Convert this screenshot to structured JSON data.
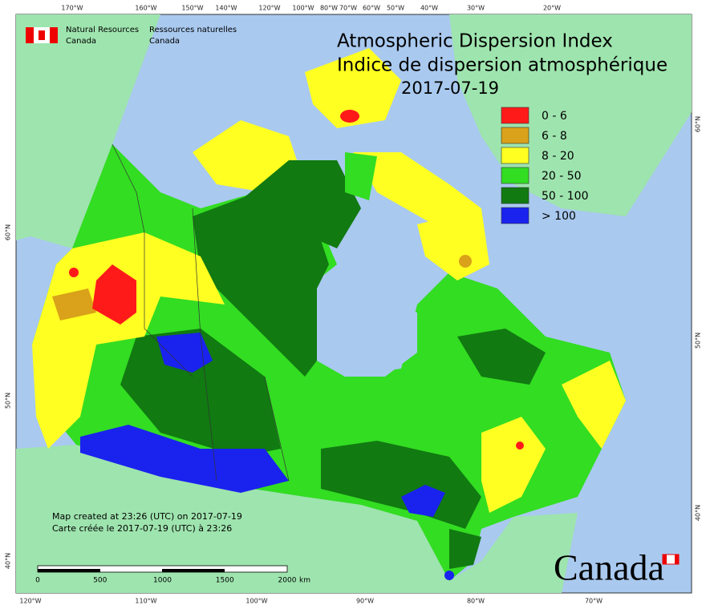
{
  "header": {
    "agency_en": "Natural Resources",
    "country_en": "Canada",
    "agency_fr": "Ressources naturelles",
    "country_fr": "Canada"
  },
  "title": {
    "en": "Atmospheric Dispersion Index",
    "fr": "Indice de dispersion atmosphérique",
    "date": "2017-07-19"
  },
  "legend": [
    {
      "label": "0 - 6",
      "color": "#ff1a1a"
    },
    {
      "label": "6 - 8",
      "color": "#d9a21a"
    },
    {
      "label": "8 - 20",
      "color": "#ffff22"
    },
    {
      "label": "20 - 50",
      "color": "#33dd22"
    },
    {
      "label": "50 - 100",
      "color": "#117a11"
    },
    {
      "label": "> 100",
      "color": "#1a22ee"
    }
  ],
  "graticule": {
    "top": [
      "170°W",
      "160°W",
      "150°W",
      "140°W",
      "120°W",
      "100°W",
      "80°W",
      "70°W",
      "60°W",
      "50°W",
      "40°W",
      "30°W",
      "20°W"
    ],
    "bottom": [
      "120°W",
      "110°W",
      "100°W",
      "90°W",
      "80°W",
      "70°W"
    ],
    "left": [
      "60°N",
      "50°N",
      "40°N"
    ],
    "right": [
      "60°N",
      "50°N",
      "40°N"
    ]
  },
  "notes": [
    "Map created at 23:26 (UTC) on 2017-07-19",
    "Carte créée le 2017-07-19 (UTC) à 23:26"
  ],
  "scale": {
    "labels": [
      "0",
      "500",
      "1000",
      "1500",
      "2000"
    ],
    "unit": "km"
  },
  "wordmark": "Canada"
}
